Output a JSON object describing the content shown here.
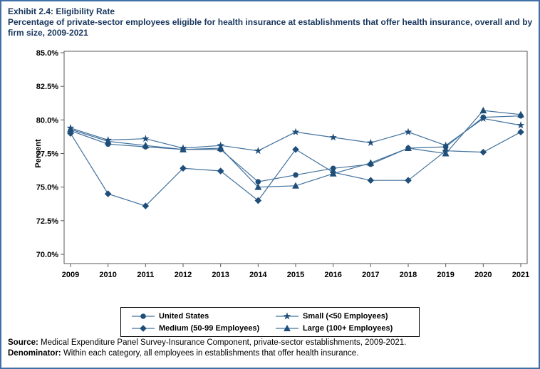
{
  "window": {
    "border_color": "#3e6fa7",
    "background": "#ffffff"
  },
  "header": {
    "title_line1": "Exhibit 2.4: Eligibility Rate",
    "title_line2": "Percentage of private-sector employees eligible for health insurance at establishments that offer health insurance, overall and by firm size, 2009-2021",
    "title_color": "#17365d"
  },
  "chart_data": {
    "type": "line",
    "title": "Exhibit 2.4: Eligibility Rate",
    "subtitle": "Percentage of private-sector employees eligible for health insurance at establishments that offer health insurance, overall and by firm size, 2009-2021",
    "xlabel": "",
    "ylabel": "Percent",
    "ylim": [
      70.0,
      85.0
    ],
    "grid": false,
    "legend_position": "bottom",
    "line_color": "#41719c",
    "marker_color": "#1f4e79",
    "frame_color": "#5a5a5a",
    "yticks": [
      {
        "value": 70.0,
        "label": "70.0%"
      },
      {
        "value": 72.5,
        "label": "72.5%"
      },
      {
        "value": 75.0,
        "label": "75.0%"
      },
      {
        "value": 77.5,
        "label": "77.5%"
      },
      {
        "value": 80.0,
        "label": "80.0%"
      },
      {
        "value": 82.5,
        "label": "82.5%"
      },
      {
        "value": 85.0,
        "label": "85.0%"
      }
    ],
    "categories": [
      "2009",
      "2010",
      "2011",
      "2012",
      "2013",
      "2014",
      "2015",
      "2016",
      "2017",
      "2018",
      "2019",
      "2020",
      "2021"
    ],
    "series": [
      {
        "name": "United States",
        "marker": "circle",
        "values": [
          79.2,
          78.2,
          78.0,
          77.8,
          77.8,
          75.4,
          75.9,
          76.4,
          76.7,
          77.9,
          78.0,
          80.2,
          80.3
        ]
      },
      {
        "name": "Small (<50 Employees)",
        "marker": "star",
        "values": [
          79.4,
          78.5,
          78.6,
          77.9,
          78.1,
          77.7,
          79.1,
          78.7,
          78.3,
          79.1,
          78.1,
          80.1,
          79.6
        ]
      },
      {
        "name": "Medium (50-99 Employees)",
        "marker": "diamond",
        "values": [
          79.0,
          74.5,
          73.6,
          76.4,
          76.2,
          74.0,
          77.8,
          76.1,
          75.5,
          75.5,
          77.7,
          77.6,
          79.1
        ]
      },
      {
        "name": "Large (100+ Employees)",
        "marker": "triangle",
        "values": [
          79.3,
          78.4,
          78.1,
          77.8,
          77.9,
          75.0,
          75.1,
          76.0,
          76.8,
          77.9,
          77.5,
          80.7,
          80.4
        ]
      }
    ]
  },
  "footer": {
    "source_label": "Source:",
    "source_text": " Medical Expenditure Panel Survey-Insurance Component, private-sector establishments, 2009-2021.",
    "denominator_label": "Denominator:",
    "denominator_text": " Within each category, all employees in establishments that offer health insurance."
  }
}
